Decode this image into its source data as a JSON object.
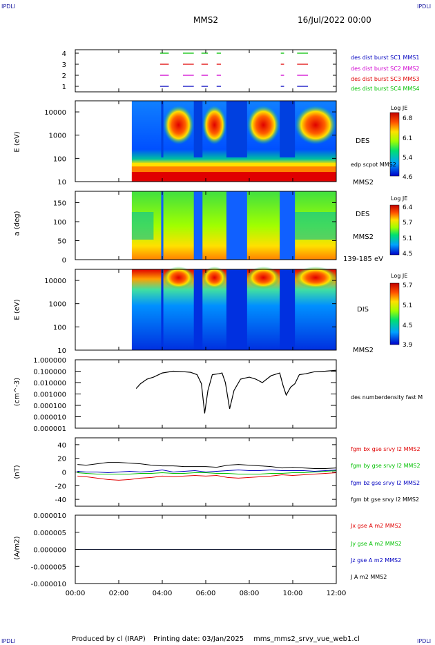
{
  "corners": {
    "top_left": "IPDLI",
    "top_right": "IPDLI",
    "bottom_left": "IPDLI",
    "bottom_right": "IPDLI"
  },
  "header": {
    "spacecraft": "MMS2",
    "datetime": "16/Jul/2022 00:00"
  },
  "footer": {
    "produced_by": "Produced by cl (IRAP)",
    "printing_date": "Printing date: 03/Jan/2025",
    "filename": "mms_mms2_srvy_vue_web1.cl"
  },
  "colors": {
    "blue": "#0000c0",
    "magenta": "#d000d0",
    "red": "#e00000",
    "green": "#00c000",
    "black": "#000000"
  },
  "chart_data": [
    {
      "type": "timeline",
      "name": "burst-coverage",
      "yticks": [
        "4",
        "3",
        "2",
        "1"
      ],
      "x_range": [
        "00:00",
        "12:00"
      ],
      "segments_hours": [
        [
          3.9,
          4.3
        ],
        [
          4.95,
          5.45
        ],
        [
          5.8,
          6.1
        ],
        [
          6.5,
          6.7
        ],
        [
          9.45,
          9.6
        ],
        [
          10.2,
          10.7
        ]
      ],
      "legend": [
        {
          "label": "des dist burst SC1 MMS1",
          "color": "#0000c0"
        },
        {
          "label": "des dist burst SC2 MMS2",
          "color": "#d000d0"
        },
        {
          "label": "des dist burst SC3 MMS3",
          "color": "#e00000"
        },
        {
          "label": "des dist burst SC4 MMS4",
          "color": "#00c000"
        }
      ]
    },
    {
      "type": "heatmap",
      "name": "des-energy-spectrogram",
      "ylabel": "E (eV)",
      "yscale": "log",
      "yticks": [
        "10000",
        "1000",
        "100",
        "10"
      ],
      "ylim": [
        10,
        30000
      ],
      "data_start_hour": 2.6,
      "right_labels": [
        "DES",
        "edp scpot MMS2",
        "MMS2"
      ],
      "colorbar": {
        "title": "Log JE",
        "ticks": [
          "6.8",
          "6.1",
          "5.4",
          "4.6"
        ],
        "min": 4.6,
        "max": 6.8
      }
    },
    {
      "type": "heatmap",
      "name": "des-pitch-angle",
      "ylabel": "a (deg)",
      "yticks": [
        "150",
        "100",
        "50",
        "0"
      ],
      "ylim": [
        0,
        180
      ],
      "data_start_hour": 2.6,
      "right_labels": [
        "DES",
        "MMS2",
        "139-185 eV"
      ],
      "colorbar": {
        "title": "Log JE",
        "ticks": [
          "6.4",
          "5.7",
          "5.1",
          "4.5"
        ],
        "min": 4.5,
        "max": 6.4
      }
    },
    {
      "type": "heatmap",
      "name": "dis-energy-spectrogram",
      "ylabel": "E (eV)",
      "yscale": "log",
      "yticks": [
        "10000",
        "1000",
        "100",
        "10"
      ],
      "ylim": [
        10,
        30000
      ],
      "data_start_hour": 2.6,
      "right_labels": [
        "DIS",
        "MMS2"
      ],
      "colorbar": {
        "title": "Log JE",
        "ticks": [
          "5.7",
          "5.1",
          "4.5",
          "3.9"
        ],
        "min": 3.9,
        "max": 5.7
      }
    },
    {
      "type": "line",
      "name": "number-density",
      "ylabel": "(cm^-3)",
      "yscale": "log",
      "yticks": [
        "1.000000",
        "0.100000",
        "0.010000",
        "0.001000",
        "0.000100",
        "0.000010",
        "0.000001"
      ],
      "ylim": [
        1e-06,
        1
      ],
      "series": [
        {
          "name": "des numberdensity fast M",
          "color": "#000000",
          "x_hours": [
            2.8,
            3.0,
            3.3,
            3.6,
            4.0,
            4.5,
            5.0,
            5.3,
            5.6,
            5.8,
            5.95,
            6.1,
            6.3,
            6.6,
            6.75,
            6.9,
            7.1,
            7.3,
            7.6,
            8.0,
            8.3,
            8.6,
            9.0,
            9.4,
            9.55,
            9.7,
            9.9,
            10.1,
            10.3,
            10.6,
            11.0,
            11.5,
            12.0
          ],
          "values": [
            0.003,
            0.008,
            0.02,
            0.03,
            0.07,
            0.1,
            0.09,
            0.08,
            0.05,
            0.008,
            2e-05,
            0.002,
            0.05,
            0.06,
            0.07,
            0.01,
            5e-05,
            0.002,
            0.02,
            0.03,
            0.02,
            0.01,
            0.04,
            0.07,
            0.006,
            0.0008,
            0.004,
            0.008,
            0.05,
            0.06,
            0.09,
            0.1,
            0.12
          ]
        }
      ]
    },
    {
      "type": "line",
      "name": "magnetic-field",
      "ylabel": "(nT)",
      "yticks": [
        "40",
        "20",
        "0",
        "-20",
        "-40"
      ],
      "ylim": [
        -50,
        50
      ],
      "x": [
        0.1,
        0.5,
        1.0,
        1.5,
        2.0,
        2.5,
        3.0,
        3.5,
        4.0,
        4.5,
        5.0,
        5.5,
        6.0,
        6.5,
        7.0,
        7.5,
        8.0,
        8.5,
        9.0,
        9.5,
        10.0,
        10.5,
        11.0,
        11.5,
        12.0
      ],
      "series": [
        {
          "name": "fgm bx gse srvy l2 MMS2",
          "color": "#e00000",
          "values": [
            -6,
            -7,
            -9,
            -11,
            -12,
            -11,
            -9,
            -8,
            -6,
            -7,
            -6,
            -5,
            -6,
            -5,
            -8,
            -9,
            -8,
            -7,
            -6,
            -4,
            -5,
            -4,
            -3,
            -2,
            -1
          ]
        },
        {
          "name": "fgm by gse srvy l2 MMS2",
          "color": "#00c000",
          "values": [
            -1,
            -2,
            -3,
            -3,
            -3,
            -3,
            -2,
            -2,
            -1,
            -2,
            -2,
            -1,
            -1,
            -2,
            -2,
            -3,
            -3,
            -3,
            -2,
            -2,
            -1,
            -1,
            0,
            1,
            2
          ]
        },
        {
          "name": "fgm bz gse srvy l2 MMS2",
          "color": "#0000c0",
          "values": [
            1,
            0,
            0,
            -1,
            0,
            1,
            0,
            1,
            3,
            0,
            1,
            2,
            0,
            1,
            2,
            3,
            2,
            2,
            3,
            2,
            2,
            2,
            1,
            2,
            3
          ]
        },
        {
          "name": "fgm bt gse srvy l2 MMS2",
          "color": "#000000",
          "values": [
            11,
            10,
            12,
            14,
            14,
            13,
            12,
            10,
            9,
            9,
            8,
            8,
            8,
            7,
            10,
            11,
            10,
            9,
            8,
            6,
            7,
            6,
            5,
            5,
            6
          ]
        }
      ]
    },
    {
      "type": "line",
      "name": "current-density",
      "ylabel": "(A/m2)",
      "yticks": [
        "0.000010",
        "0.000005",
        "0.000000",
        "-0.000005",
        "-0.000010"
      ],
      "ylim": [
        -1e-05,
        1e-05
      ],
      "x": [
        0,
        12
      ],
      "series": [
        {
          "name": "Jx gse A m2 MMS2",
          "color": "#e00000",
          "values": [
            0,
            0
          ]
        },
        {
          "name": "Jy gse A m2 MMS2",
          "color": "#00c000",
          "values": [
            0,
            0
          ]
        },
        {
          "name": "Jz gse A m2 MMS2",
          "color": "#0000c0",
          "values": [
            0,
            0
          ]
        },
        {
          "name": "J A m2 MMS2",
          "color": "#000000",
          "values": [
            0,
            0
          ]
        }
      ]
    }
  ],
  "x_axis": {
    "ticks": [
      "00:00",
      "02:00",
      "04:00",
      "06:00",
      "08:00",
      "10:00",
      "12:00"
    ],
    "min_hour": 0,
    "max_hour": 12
  }
}
